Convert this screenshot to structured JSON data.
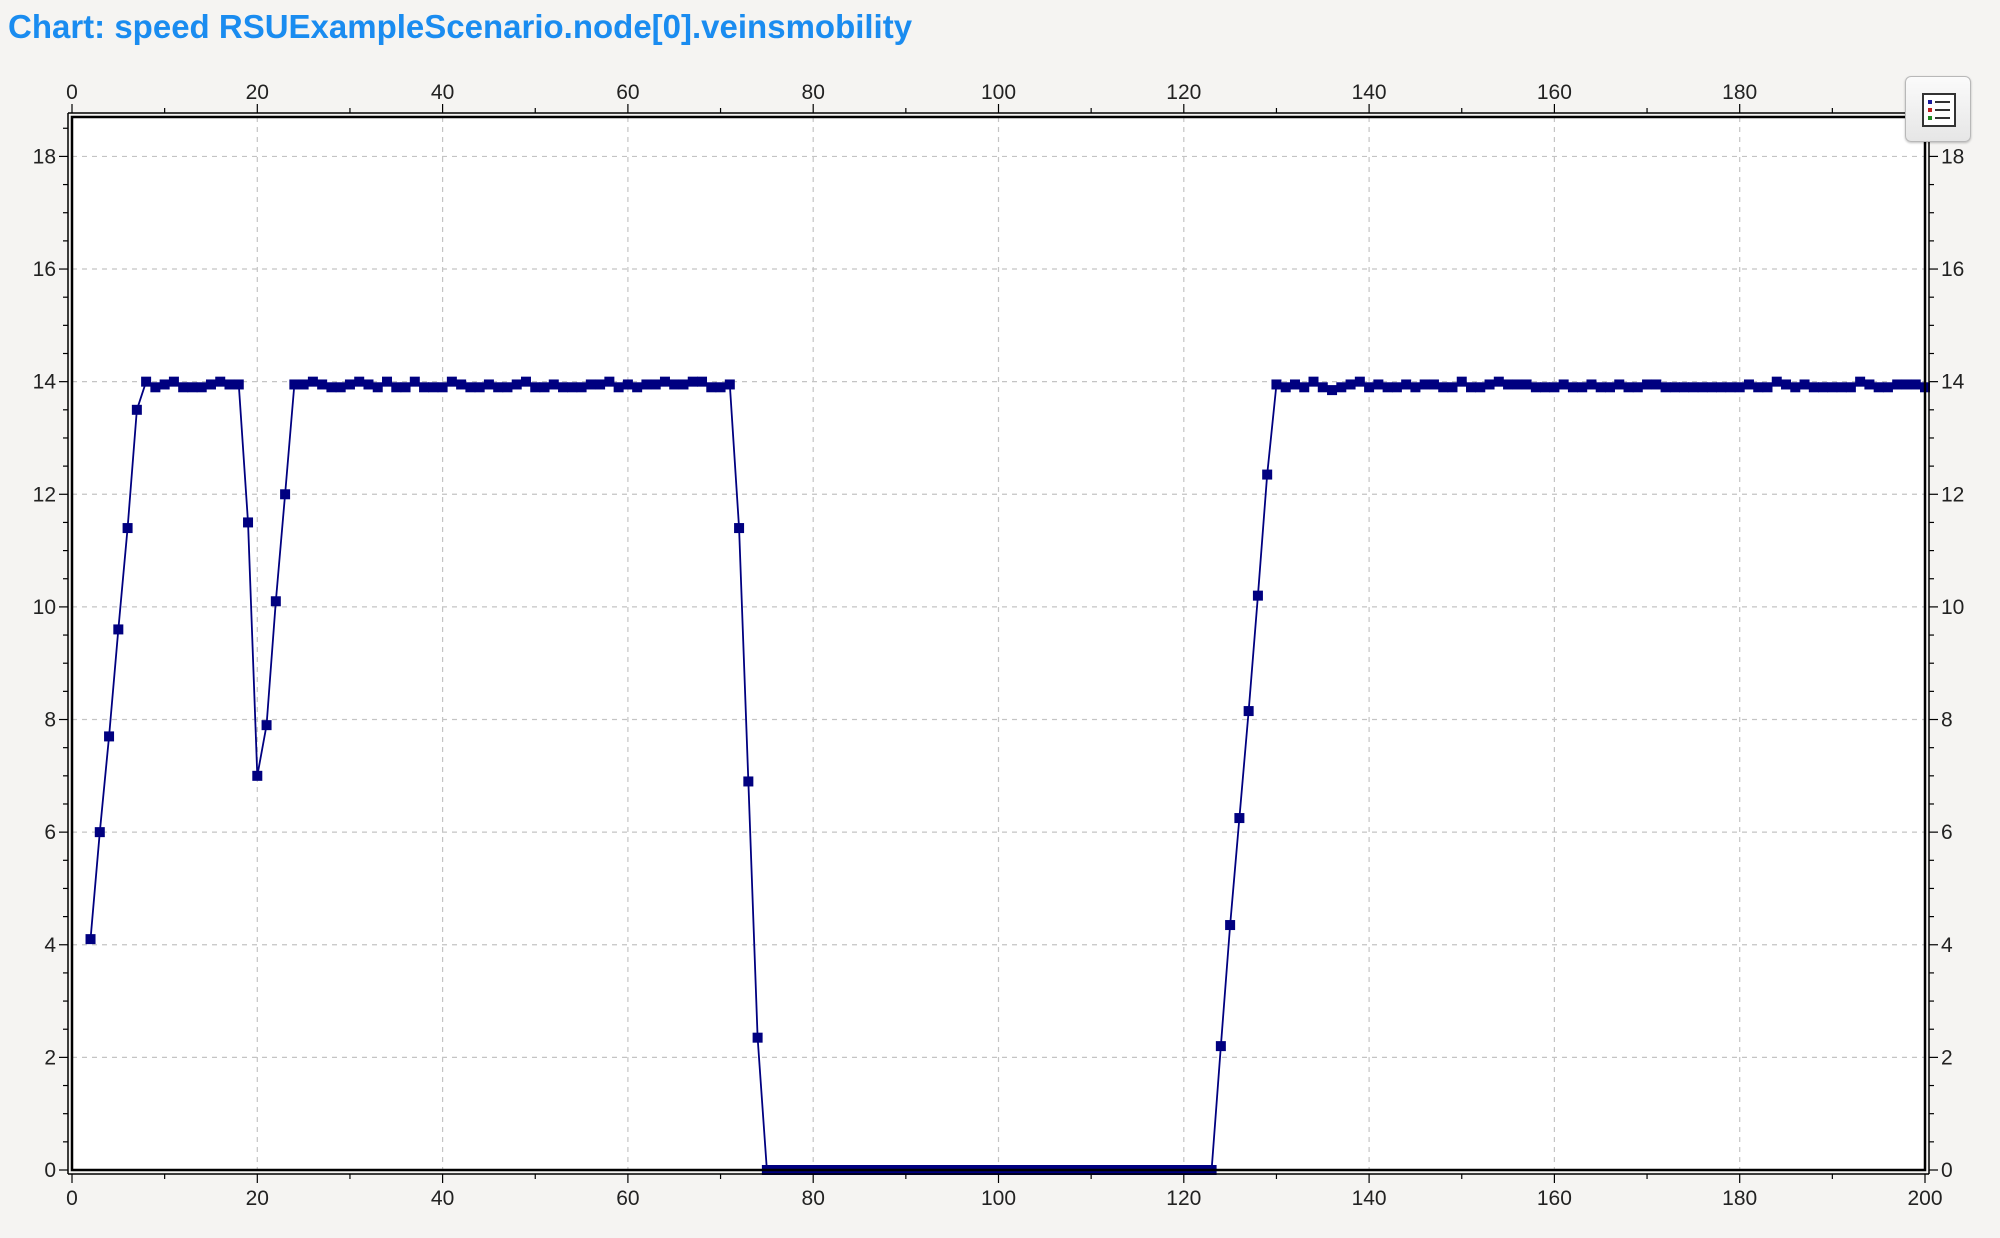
{
  "window": {
    "title": "Chart: speed RSUExampleScenario.node[0].veinsmobility"
  },
  "toolbar": {
    "legend_icon": "legend-list-icon"
  },
  "colors": {
    "series": "#000080",
    "grid": "#c4c4c4",
    "title": "#1a8cf0",
    "background": "#f5f4f2",
    "plot_background": "#ffffff"
  },
  "chart_data": {
    "type": "line",
    "title": "",
    "xlabel": "",
    "ylabel": "",
    "xlim": [
      0,
      200
    ],
    "ylim": [
      0,
      18.7
    ],
    "xticks": [
      0,
      20,
      40,
      60,
      80,
      100,
      120,
      140,
      160,
      180,
      200
    ],
    "yticks": [
      0,
      2,
      4,
      6,
      8,
      10,
      12,
      14,
      16,
      18
    ],
    "xtick_labels": [
      "0",
      "20",
      "40",
      "60",
      "80",
      "100",
      "120",
      "140",
      "160",
      "180",
      "200"
    ],
    "ytick_labels": [
      "0",
      "2",
      "4",
      "6",
      "8",
      "10",
      "12",
      "14",
      "16",
      "18"
    ],
    "grid": true,
    "markers": "square",
    "series": [
      {
        "x": [
          2,
          3,
          4,
          5,
          6,
          7,
          8,
          9,
          10,
          11,
          12,
          13,
          14,
          15,
          16,
          17,
          18,
          19,
          20,
          21,
          22,
          23,
          24,
          25,
          26,
          27,
          28,
          29,
          30,
          31,
          32,
          33,
          34,
          35,
          36,
          37,
          38,
          39,
          40,
          41,
          42,
          43,
          44,
          45,
          46,
          47,
          48,
          49,
          50,
          51,
          52,
          53,
          54,
          55,
          56,
          57,
          58,
          59,
          60,
          61,
          62,
          63,
          64,
          65,
          66,
          67,
          68,
          69,
          70,
          71,
          72,
          73,
          74,
          75,
          76,
          77,
          78,
          79,
          80,
          81,
          82,
          83,
          84,
          85,
          86,
          87,
          88,
          89,
          90,
          91,
          92,
          93,
          94,
          95,
          96,
          97,
          98,
          99,
          100,
          101,
          102,
          103,
          104,
          105,
          106,
          107,
          108,
          109,
          110,
          111,
          112,
          113,
          114,
          115,
          116,
          117,
          118,
          119,
          120,
          121,
          122,
          123,
          124,
          125,
          126,
          127,
          128,
          129,
          130,
          131,
          132,
          133,
          134,
          135,
          136,
          137,
          138,
          139,
          140,
          141,
          142,
          143,
          144,
          145,
          146,
          147,
          148,
          149,
          150,
          151,
          152,
          153,
          154,
          155,
          156,
          157,
          158,
          159,
          160,
          161,
          162,
          163,
          164,
          165,
          166,
          167,
          168,
          169,
          170,
          171,
          172,
          173,
          174,
          175,
          176,
          177,
          178,
          179,
          180,
          181,
          182,
          183,
          184,
          185,
          186,
          187,
          188,
          189,
          190,
          191,
          192,
          193,
          194,
          195,
          196,
          197,
          198,
          199,
          200
        ],
        "values": [
          4.1,
          6.0,
          7.7,
          9.6,
          11.4,
          13.5,
          14.0,
          13.9,
          13.95,
          14.0,
          13.9,
          13.9,
          13.9,
          13.95,
          14.0,
          13.95,
          13.95,
          11.5,
          7.0,
          7.9,
          10.1,
          12.0,
          13.95,
          13.95,
          14.0,
          13.95,
          13.9,
          13.9,
          13.95,
          14.0,
          13.95,
          13.9,
          14.0,
          13.9,
          13.9,
          14.0,
          13.9,
          13.9,
          13.9,
          14.0,
          13.95,
          13.9,
          13.9,
          13.95,
          13.9,
          13.9,
          13.95,
          14.0,
          13.9,
          13.9,
          13.95,
          13.9,
          13.9,
          13.9,
          13.95,
          13.95,
          14.0,
          13.9,
          13.95,
          13.9,
          13.95,
          13.95,
          14.0,
          13.95,
          13.95,
          14.0,
          14.0,
          13.9,
          13.9,
          13.95,
          11.4,
          6.9,
          2.35,
          0,
          0,
          0,
          0,
          0,
          0,
          0,
          0,
          0,
          0,
          0,
          0,
          0,
          0,
          0,
          0,
          0,
          0,
          0,
          0,
          0,
          0,
          0,
          0,
          0,
          0,
          0,
          0,
          0,
          0,
          0,
          0,
          0,
          0,
          0,
          0,
          0,
          0,
          0,
          0,
          0,
          0,
          0,
          0,
          0,
          0,
          0,
          0,
          0,
          2.2,
          4.35,
          6.25,
          8.15,
          10.2,
          12.35,
          13.95,
          13.9,
          13.95,
          13.9,
          14.0,
          13.9,
          13.85,
          13.9,
          13.95,
          14.0,
          13.9,
          13.95,
          13.9,
          13.9,
          13.95,
          13.9,
          13.95,
          13.95,
          13.9,
          13.9,
          14.0,
          13.9,
          13.9,
          13.95,
          14.0,
          13.95,
          13.95,
          13.95,
          13.9,
          13.9,
          13.9,
          13.95,
          13.9,
          13.9,
          13.95,
          13.9,
          13.9,
          13.95,
          13.9,
          13.9,
          13.95,
          13.95,
          13.9,
          13.9,
          13.9,
          13.9,
          13.9,
          13.9,
          13.9,
          13.9,
          13.9,
          13.95,
          13.9,
          13.9,
          14.0,
          13.95,
          13.9,
          13.95,
          13.9,
          13.9,
          13.9,
          13.9,
          13.9,
          14.0,
          13.95,
          13.9,
          13.9,
          13.95,
          13.95,
          13.95,
          13.9
        ]
      }
    ]
  }
}
